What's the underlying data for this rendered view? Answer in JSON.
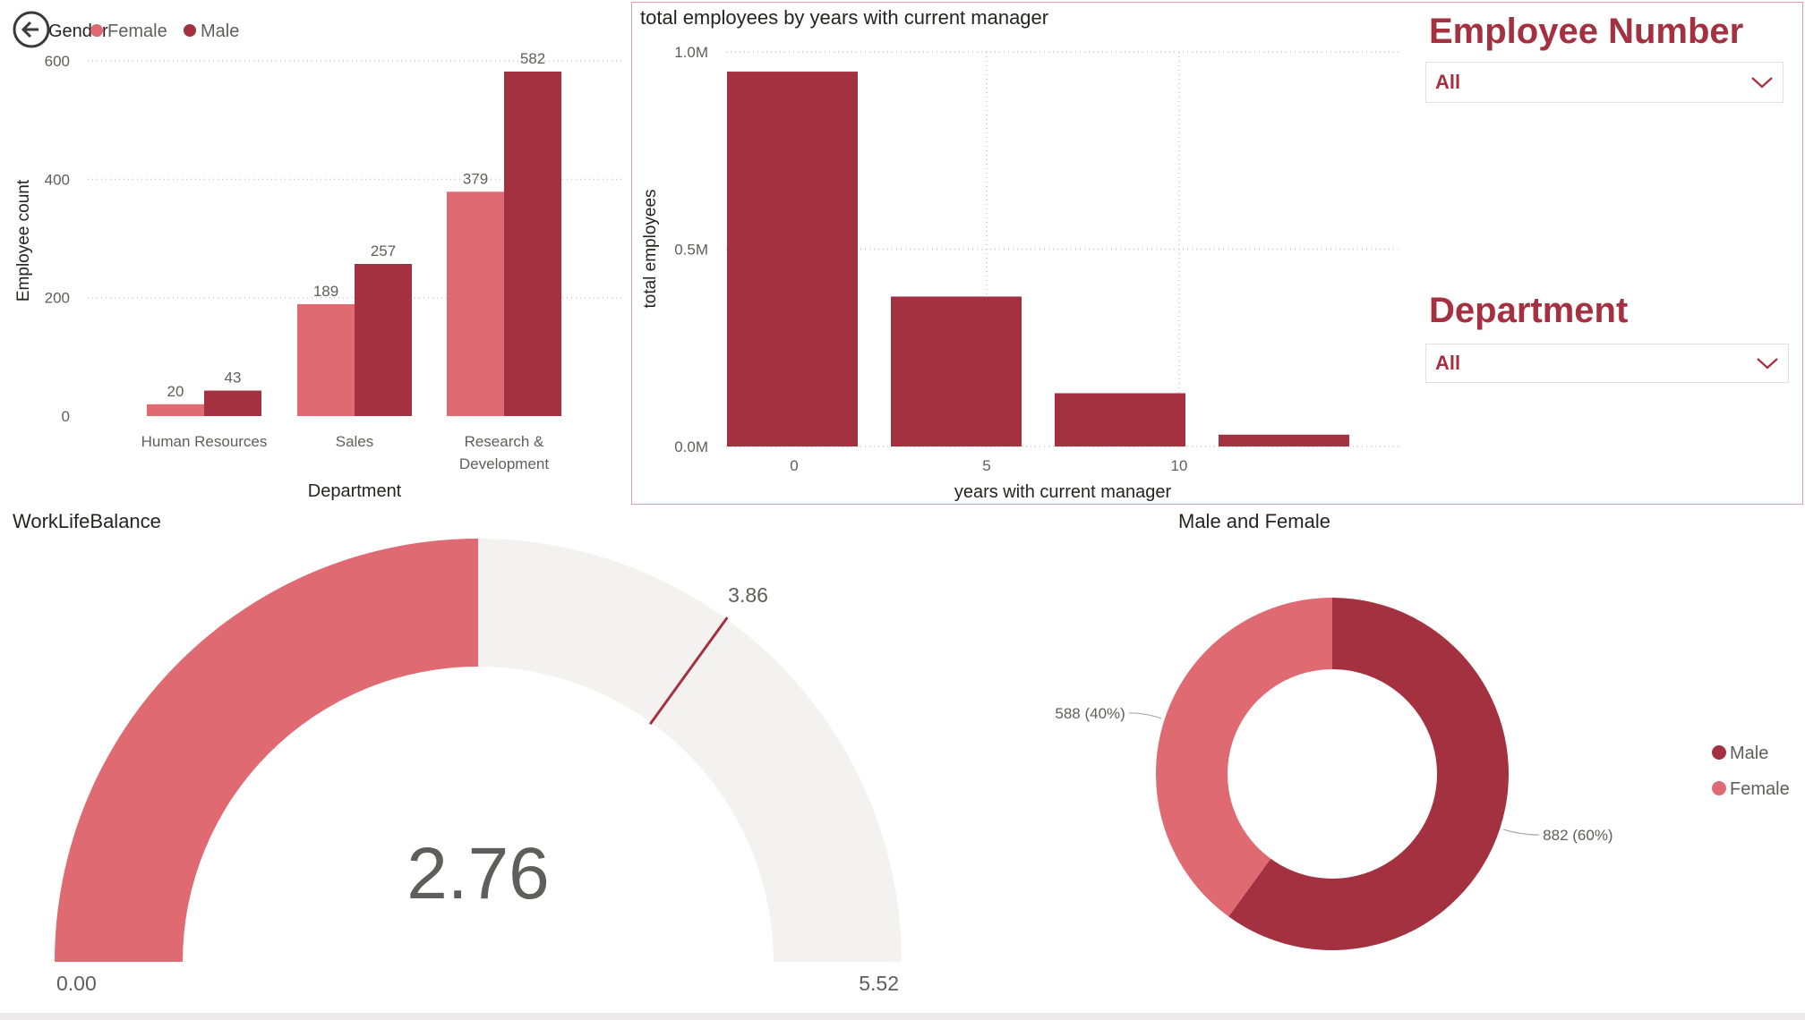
{
  "colors": {
    "female": "#e06a72",
    "male": "#a3313f",
    "gauge_bg": "#f3f2f1",
    "accent": "#a3313f"
  },
  "back_icon": "circled-left-arrow-icon",
  "dept_chart": {
    "legend_title": "Gender",
    "legend": [
      "Female",
      "Male"
    ],
    "ylabel": "Employee count",
    "xlabel": "Department",
    "yticks": [
      "0",
      "200",
      "400",
      "600"
    ],
    "chart_data": {
      "type": "bar",
      "categories": [
        [
          "Human Resources"
        ],
        [
          "Sales"
        ],
        [
          "Research &",
          "Development"
        ]
      ],
      "series": [
        {
          "name": "Female",
          "values": [
            20,
            189,
            379
          ]
        },
        {
          "name": "Male",
          "values": [
            43,
            257,
            582
          ]
        }
      ],
      "ylim": [
        0,
        650
      ],
      "grid": true
    }
  },
  "manager_chart": {
    "title": "total employees by years with current manager",
    "ylabel": "total employees",
    "xlabel": "years with current manager",
    "yticks": [
      "0.0M",
      "0.5M",
      "1.0M"
    ],
    "xticks": [
      "0",
      "5",
      "10"
    ],
    "chart_data": {
      "type": "bar",
      "x": [
        0,
        5,
        10,
        15
      ],
      "values": [
        0.95,
        0.38,
        0.135,
        0.03
      ],
      "unit": "M",
      "ylim": [
        0,
        1.0
      ],
      "grid": true
    }
  },
  "slicers": {
    "employee_number": {
      "title": "Employee Number",
      "value": "All"
    },
    "department": {
      "title": "Department",
      "value": "All"
    }
  },
  "gauge": {
    "title": "WorkLifeBalance",
    "value": 2.76,
    "value_label": "2.76",
    "min_label": "0.00",
    "max_label": "5.52",
    "target_label": "3.86",
    "min": 0,
    "max": 5.52,
    "target": 3.86
  },
  "donut": {
    "title": "Male and Female",
    "legend": [
      "Male",
      "Female"
    ],
    "chart_data": {
      "type": "pie",
      "slices": [
        {
          "name": "Male",
          "value": 882,
          "label": "882 (60%)"
        },
        {
          "name": "Female",
          "value": 588,
          "label": "588 (40%)"
        }
      ]
    }
  }
}
